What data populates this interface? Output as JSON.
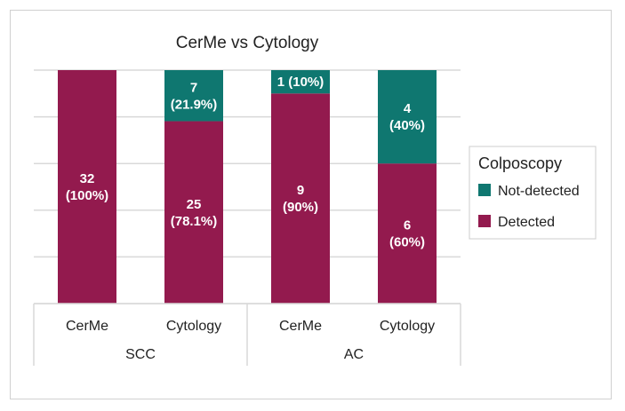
{
  "chart_data": {
    "type": "bar",
    "stacked": true,
    "normalized": true,
    "title": "CerMe vs Cytology",
    "groups": [
      {
        "name": "SCC",
        "categories": [
          "CerMe",
          "Cytology"
        ]
      },
      {
        "name": "AC",
        "categories": [
          "CerMe",
          "Cytology"
        ]
      }
    ],
    "categories": [
      "CerMe",
      "Cytology",
      "CerMe",
      "Cytology"
    ],
    "series": [
      {
        "name": "Detected",
        "color": "#931a4e",
        "values": [
          32,
          25,
          9,
          6
        ],
        "labels": [
          [
            "32",
            "(100%)"
          ],
          [
            "25",
            "(78.1%)"
          ],
          [
            "9",
            "(90%)"
          ],
          [
            "6",
            "(60%)"
          ]
        ]
      },
      {
        "name": "Not-detected",
        "color": "#0f7770",
        "values": [
          0,
          7,
          1,
          4
        ],
        "labels": [
          null,
          [
            "7",
            "(21.9%)"
          ],
          [
            "1 (10%)"
          ],
          [
            "4",
            "(40%)"
          ]
        ]
      }
    ],
    "ylim": [
      0,
      1
    ],
    "grid": true,
    "legend": {
      "title": "Colposcopy",
      "placement": "right",
      "entries": [
        "Not-detected",
        "Detected"
      ]
    }
  }
}
